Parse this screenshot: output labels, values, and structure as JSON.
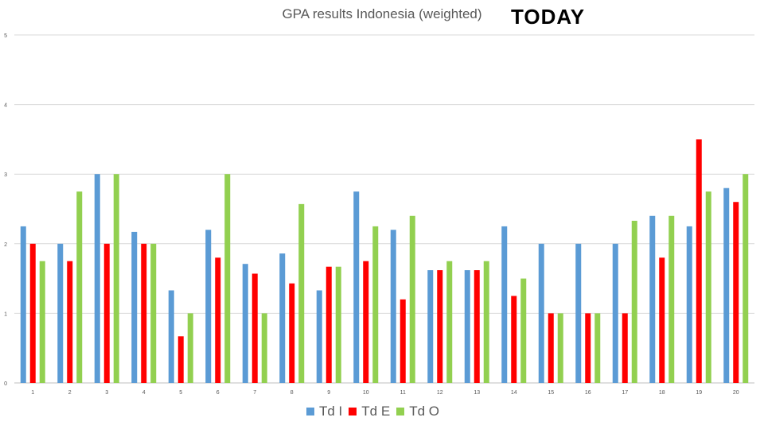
{
  "headline": "TODAY",
  "chart_data": {
    "type": "bar",
    "title": "GPA results Indonesia (weighted)",
    "xlabel": "",
    "ylabel": "",
    "ylim": [
      0,
      5
    ],
    "yticks": [
      "0",
      "1",
      "2",
      "3",
      "4",
      "5"
    ],
    "grid": true,
    "legend_position": "bottom",
    "categories": [
      "1",
      "2",
      "3",
      "4",
      "5",
      "6",
      "7",
      "8",
      "9",
      "10",
      "11",
      "12",
      "13",
      "14",
      "15",
      "16",
      "17",
      "18",
      "19",
      "20"
    ],
    "series": [
      {
        "name": "Td I",
        "color": "#5B9BD5",
        "values": [
          2.25,
          2.0,
          3.0,
          2.17,
          1.33,
          2.2,
          1.71,
          1.86,
          1.33,
          2.75,
          2.2,
          1.62,
          1.62,
          2.25,
          2.0,
          2.0,
          2.0,
          2.4,
          2.25,
          2.8
        ]
      },
      {
        "name": "Td E",
        "color": "#FF0000",
        "values": [
          2.0,
          1.75,
          2.0,
          2.0,
          0.67,
          1.8,
          1.57,
          1.43,
          1.67,
          1.75,
          1.2,
          1.62,
          1.62,
          1.25,
          1.0,
          1.0,
          1.0,
          1.8,
          3.5,
          2.6
        ]
      },
      {
        "name": "Td O",
        "color": "#92D050",
        "values": [
          1.75,
          2.75,
          3.0,
          2.0,
          1.0,
          3.0,
          1.0,
          2.57,
          1.67,
          2.25,
          2.4,
          1.75,
          1.75,
          1.5,
          1.0,
          1.0,
          2.33,
          2.4,
          2.75,
          3.0
        ]
      }
    ]
  }
}
